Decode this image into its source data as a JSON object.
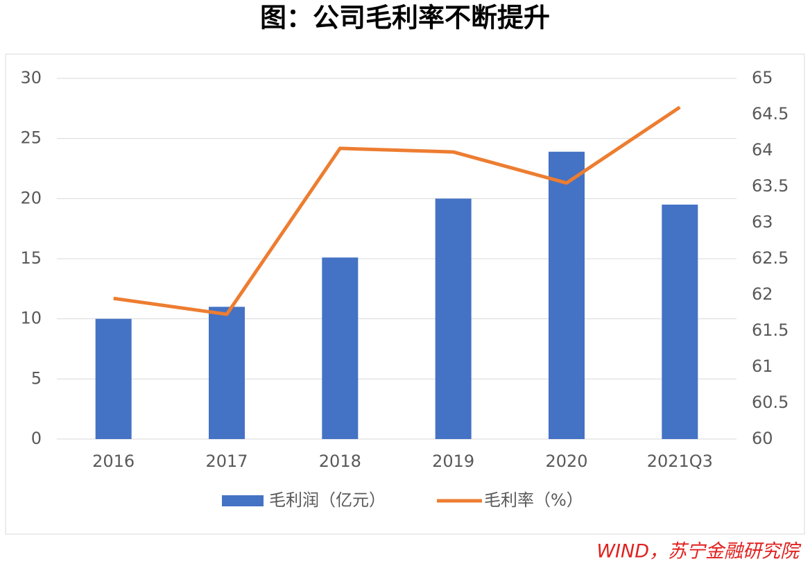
{
  "chart_data": {
    "type": "combo",
    "title": "图：公司毛利率不断提升",
    "categories": [
      "2016",
      "2017",
      "2018",
      "2019",
      "2020",
      "2021Q3"
    ],
    "series": [
      {
        "name": "毛利润（亿元）",
        "type": "bar",
        "color": "#4472c4",
        "values": [
          10,
          11,
          15.1,
          20,
          23.9,
          19.5
        ]
      },
      {
        "name": "毛利率（%）",
        "type": "line",
        "axis": "y2",
        "color": "#ed7d31",
        "values": [
          61.95,
          61.73,
          64.03,
          63.98,
          63.55,
          64.6
        ]
      }
    ],
    "ylim": [
      0,
      30
    ],
    "yticks": [
      0,
      5,
      10,
      15,
      20,
      25,
      30
    ],
    "y2lim": [
      60,
      65
    ],
    "y2ticks": [
      60,
      60.5,
      61,
      61.5,
      62,
      62.5,
      63,
      63.5,
      64,
      64.5,
      65
    ],
    "grid": true,
    "legend": "bottom",
    "source": "WIND，苏宁金融研究院"
  }
}
